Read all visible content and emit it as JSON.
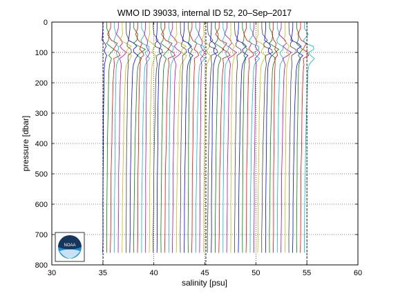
{
  "chart_data": {
    "type": "line",
    "title": "WMO ID 39033, internal ID 52, 20–Sep–2017",
    "xlabel": "salinity [psu]",
    "ylabel": "pressure [dbar]",
    "xlim": [
      30,
      60
    ],
    "ylim": [
      800,
      0
    ],
    "y_reversed": true,
    "x_ticks": [
      "30",
      "35",
      "40",
      "45",
      "50",
      "55",
      "60"
    ],
    "y_ticks": [
      "0",
      "100",
      "200",
      "300",
      "400",
      "500",
      "600",
      "700",
      "800"
    ],
    "grid": "dotted",
    "profile_offset": "each successive profile shifted right in salinity",
    "profiles": {
      "count": 53,
      "first_offset": 35.0,
      "offset_step": 0.38,
      "pressure": [
        0,
        20,
        40,
        60,
        70,
        80,
        90,
        100,
        110,
        120,
        140,
        160,
        200,
        300,
        400,
        500,
        600,
        700,
        760
      ],
      "anomaly": [
        0.0,
        0.0,
        0.02,
        0.1,
        0.22,
        0.35,
        0.45,
        0.48,
        0.44,
        0.36,
        0.28,
        0.22,
        0.18,
        0.12,
        0.08,
        0.04,
        0.02,
        0.0,
        -0.01
      ],
      "colors": [
        "#0000ff",
        "#008000",
        "#ff0000",
        "#00bfbf",
        "#bf00bf",
        "#bfbf00",
        "#404040"
      ]
    },
    "reference_lines": {
      "style": "dashed",
      "color": "#000000",
      "x": [
        35.02,
        45.1,
        55.0
      ]
    }
  },
  "logo": {
    "text": "NOAA",
    "name": "noaa-logo"
  }
}
